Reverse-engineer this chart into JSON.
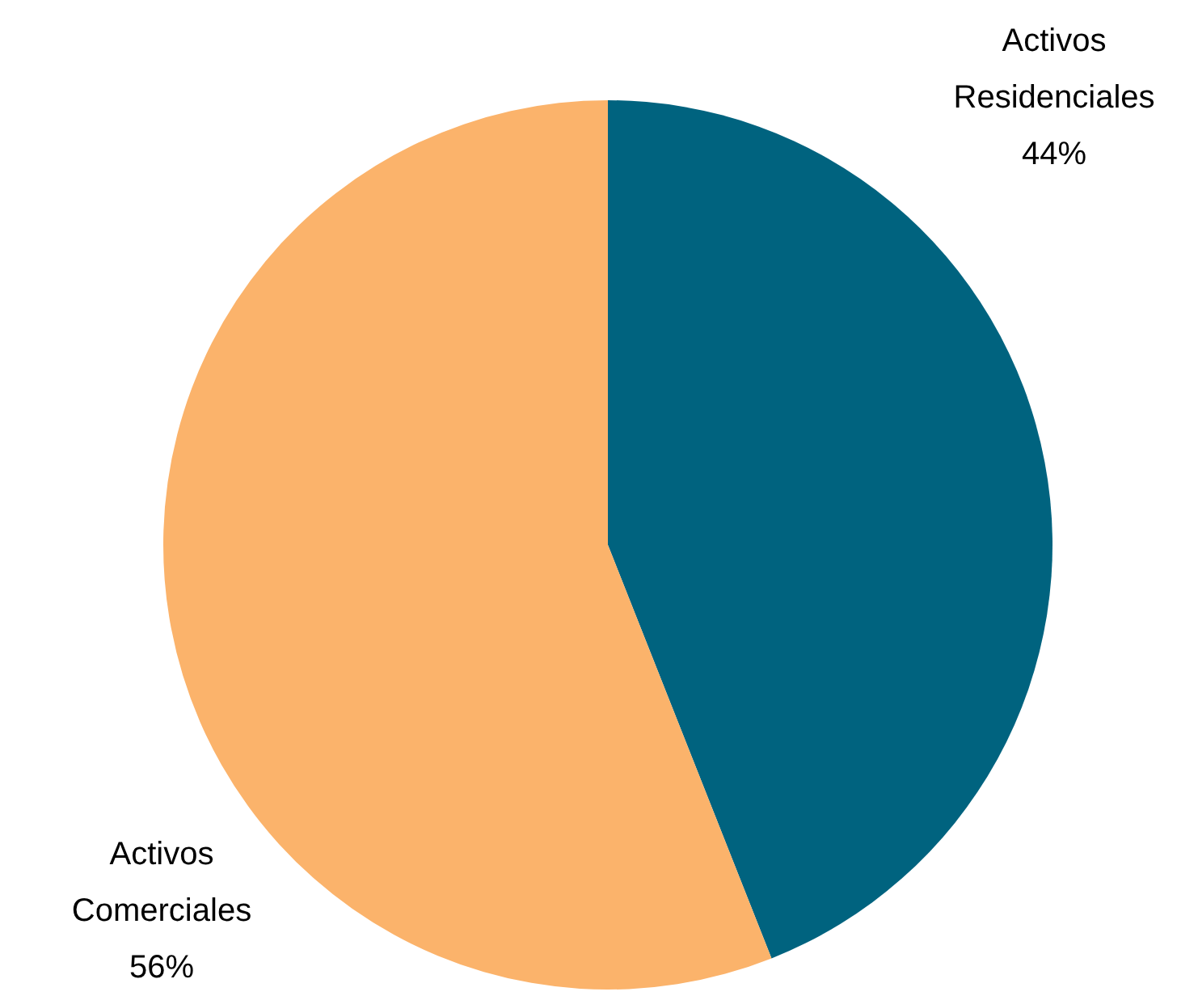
{
  "chart_data": {
    "type": "pie",
    "categories": [
      "Activos Residenciales",
      "Activos Comerciales"
    ],
    "values": [
      44,
      56
    ],
    "colors": [
      "#00637f",
      "#fbb36b"
    ],
    "value_labels": [
      "44%",
      "56%"
    ],
    "legend": false
  }
}
